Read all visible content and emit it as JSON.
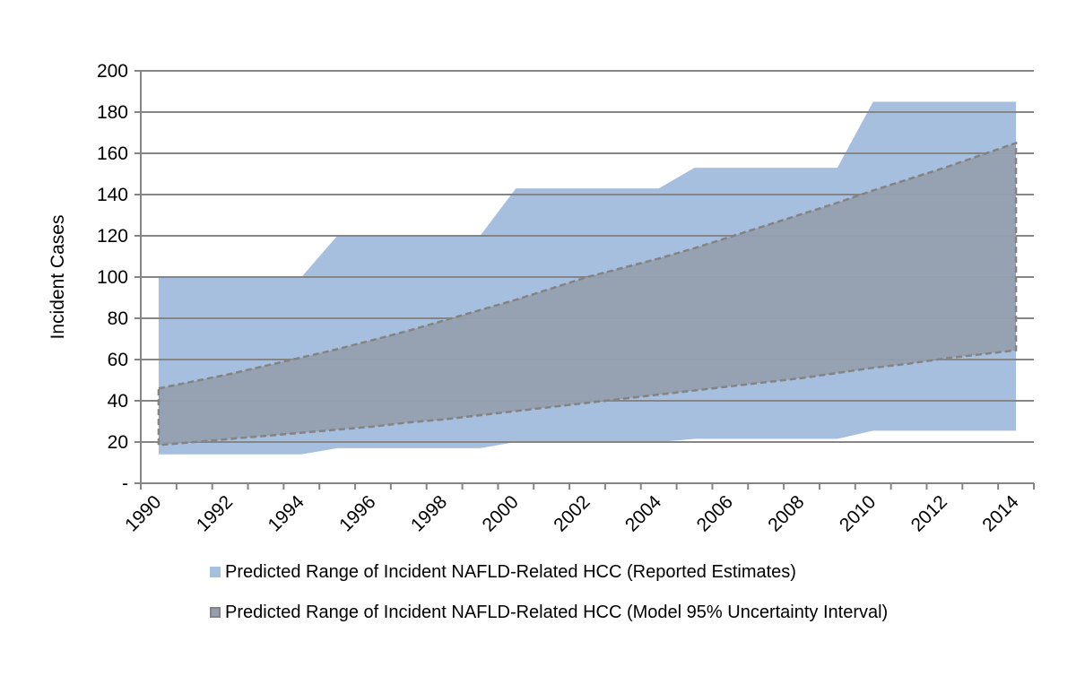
{
  "chart_data": {
    "type": "area",
    "title": "",
    "xlabel": "",
    "ylabel": "Incident Cases",
    "ylim": [
      0,
      200
    ],
    "y_ticks": [
      {
        "value": 0,
        "label": "-"
      },
      {
        "value": 20,
        "label": "20"
      },
      {
        "value": 40,
        "label": "40"
      },
      {
        "value": 60,
        "label": "60"
      },
      {
        "value": 80,
        "label": "80"
      },
      {
        "value": 100,
        "label": "100"
      },
      {
        "value": 120,
        "label": "120"
      },
      {
        "value": 140,
        "label": "140"
      },
      {
        "value": 160,
        "label": "160"
      },
      {
        "value": 180,
        "label": "180"
      },
      {
        "value": 200,
        "label": "200"
      }
    ],
    "grid": true,
    "categories": [
      "1990",
      "1991",
      "1992",
      "1993",
      "1994",
      "1995",
      "1996",
      "1997",
      "1998",
      "1999",
      "2000",
      "2001",
      "2002",
      "2003",
      "2004",
      "2005",
      "2006",
      "2007",
      "2008",
      "2009",
      "2010",
      "2011",
      "2012",
      "2013",
      "2014"
    ],
    "x_tick_labels": [
      "1990",
      "1992",
      "1994",
      "1996",
      "1998",
      "2000",
      "2002",
      "2004",
      "2006",
      "2008",
      "2010",
      "2012",
      "2014"
    ],
    "legend_position": "bottom",
    "series": [
      {
        "name": "Predicted Range of Incident NAFLD-Related HCC (Reported Estimates)",
        "style": "filled-range",
        "color": "#a7bfdf",
        "upper": [
          100,
          100,
          100,
          100,
          100,
          120,
          120,
          120,
          120,
          120,
          143,
          143,
          143,
          143,
          143,
          153,
          153,
          153,
          153,
          153,
          185,
          185,
          185,
          185,
          185
        ],
        "lower": [
          14,
          14,
          14,
          14,
          14,
          17,
          17,
          17,
          17,
          17,
          20,
          20,
          20,
          20,
          20,
          21.5,
          21.5,
          21.5,
          21.5,
          21.5,
          25.5,
          25.5,
          25.5,
          25.5,
          25.5
        ]
      },
      {
        "name": "Predicted Range of Incident NAFLD-Related HCC (Model 95% Uncertainty Interval)",
        "style": "filled-range-dashed-outline",
        "color": "#949fae",
        "outline_color": "#838383",
        "upper": [
          46,
          49.5,
          53,
          57,
          61,
          65,
          69.5,
          74,
          79,
          84,
          89,
          94.5,
          100,
          104.5,
          109,
          114,
          119.5,
          125,
          130.5,
          136,
          142,
          147.5,
          153,
          159,
          165
        ],
        "lower": [
          18.5,
          20,
          21.5,
          23,
          24.5,
          26,
          27.5,
          29.5,
          31,
          33,
          35,
          37,
          39,
          41,
          43,
          45,
          47,
          49,
          51,
          53.5,
          56,
          58,
          60.5,
          62.5,
          64.5
        ]
      }
    ]
  },
  "legend": {
    "items": [
      {
        "label": "Predicted Range of Incident NAFLD-Related HCC (Reported Estimates)"
      },
      {
        "label": "Predicted Range of Incident NAFLD-Related HCC (Model 95% Uncertainty Interval)"
      }
    ]
  },
  "colors": {
    "gridline": "#858585",
    "axis": "#858585"
  }
}
